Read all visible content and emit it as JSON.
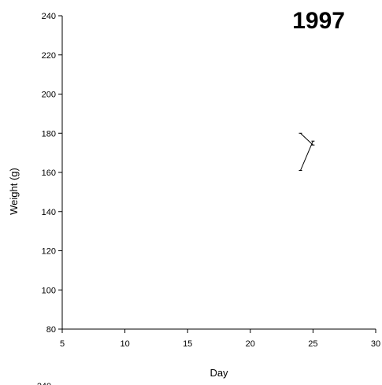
{
  "chart_data": {
    "type": "line",
    "title": "1997",
    "xlabel": "Day",
    "ylabel": "Weight (g)",
    "xlim": [
      5,
      30
    ],
    "ylim": [
      80,
      240
    ],
    "xticks": [
      5,
      10,
      15,
      20,
      25,
      30
    ],
    "yticks": [
      80,
      100,
      120,
      140,
      160,
      180,
      200,
      220,
      240
    ],
    "grid": false,
    "legend": "none",
    "series": [
      {
        "x": [
          24,
          25
        ],
        "y": [
          161,
          176
        ]
      },
      {
        "x": [
          24,
          25
        ],
        "y": [
          180,
          174
        ]
      }
    ],
    "next_chart_tick_label": "240"
  }
}
